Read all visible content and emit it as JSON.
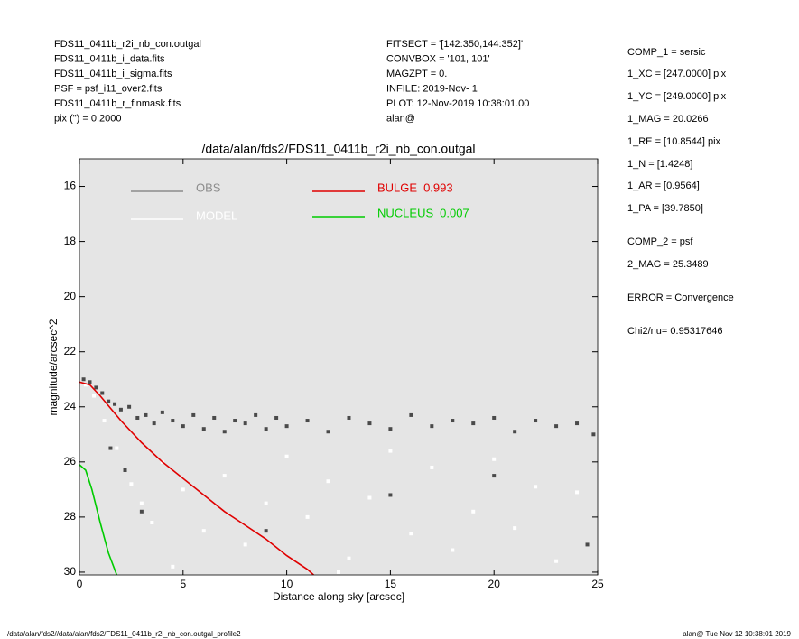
{
  "header": {
    "left": [
      "FDS11_0411b_r2i_nb_con.outgal",
      "FDS11_0411b_i_data.fits",
      "FDS11_0411b_i_sigma.fits",
      "PSF    = psf_i11_over2.fits",
      "FDS11_0411b_r_finmask.fits",
      "pix (\") =  0.2000"
    ],
    "middle": [
      "FITSECT = '[142:350,144:352]'",
      "CONVBOX = '101, 101'",
      "MAGZPT  =              0.",
      "INFILE: 2019-Nov- 1",
      "PLOT: 12-Nov-2019 10:38:01.00",
      "alan@"
    ]
  },
  "parameters": [
    "COMP_1  = sersic",
    "1_XC    = [247.0000] pix",
    "1_YC    = [249.0000] pix",
    "1_MAG   = 20.0266",
    "1_RE    = [10.8544] pix",
    "1_N     = [1.4248]",
    "1_AR    = [0.9564]",
    "1_PA    = [39.7850]",
    "COMP_2  = psf",
    "2_MAG   = 25.3489",
    "ERROR   = Convergence",
    "Chi2/nu=      0.95317646"
  ],
  "footer": {
    "left": "/data/alan/fds2//data/alan/fds2/FDS11_0411b_r2i_nb_con.outgal_profile2",
    "right": "alan@  Tue Nov 12 10:38:01 2019"
  },
  "chart_data": {
    "type": "scatter",
    "title": "/data/alan/fds2/FDS11_0411b_r2i_nb_con.outgal",
    "xlabel": "Distance along sky [arcsec]",
    "ylabel": "magnitude/arcsec^2",
    "xlim": [
      0,
      25
    ],
    "ylim": [
      15,
      30.1
    ],
    "y_inverted": true,
    "xticks": [
      0,
      5,
      10,
      15,
      20,
      25
    ],
    "yticks": [
      16,
      18,
      20,
      22,
      24,
      26,
      28,
      30
    ],
    "background": "#e5e5e5",
    "series": [
      {
        "name": "OBS",
        "color": "#4a4a4a",
        "legend_color": "#8c8c8c",
        "kind": "points",
        "x": [
          0.2,
          0.5,
          0.8,
          1.1,
          1.4,
          1.7,
          2.0,
          2.4,
          2.8,
          3.2,
          3.6,
          4.0,
          4.5,
          5,
          5.5,
          6,
          6.5,
          7,
          7.5,
          8,
          8.5,
          9,
          9.5,
          10,
          11,
          12,
          13,
          14,
          15,
          16,
          17,
          18,
          19,
          20,
          21,
          22,
          23,
          24,
          24.8,
          1.5,
          2.2,
          3,
          9,
          15,
          20,
          24.5
        ],
        "values": [
          23,
          23.1,
          23.3,
          23.5,
          23.8,
          23.9,
          24.1,
          24.0,
          24.4,
          24.3,
          24.6,
          24.2,
          24.5,
          24.7,
          24.3,
          24.8,
          24.4,
          24.9,
          24.5,
          24.6,
          24.3,
          24.8,
          24.4,
          24.7,
          24.5,
          24.9,
          24.4,
          24.6,
          24.8,
          24.3,
          24.7,
          24.5,
          24.6,
          24.4,
          24.9,
          24.5,
          24.7,
          24.6,
          25.0,
          25.5,
          26.3,
          27.8,
          28.5,
          27.2,
          26.5,
          29
        ]
      },
      {
        "name": "MODEL",
        "color": "#ffffff",
        "legend_color": "#ffffff",
        "kind": "points",
        "x": [
          0.3,
          0.7,
          1.2,
          1.8,
          2.5,
          3,
          3.5,
          4,
          5,
          6,
          7,
          8,
          9,
          10,
          11,
          12,
          13,
          14,
          15,
          16,
          17,
          18,
          19,
          20,
          21,
          22,
          23,
          24,
          4.5,
          12.5
        ],
        "values": [
          23.2,
          23.6,
          24.5,
          25.5,
          26.8,
          27.5,
          28.2,
          26,
          27,
          28.5,
          26.5,
          29,
          27.5,
          25.8,
          28,
          26.7,
          29.5,
          27.3,
          25.6,
          28.6,
          26.2,
          29.2,
          27.8,
          25.9,
          28.4,
          26.9,
          29.6,
          27.1,
          29.8,
          30
        ]
      },
      {
        "name": "BULGE",
        "fraction": 0.993,
        "color": "#e00000",
        "legend_color": "#e00000",
        "kind": "line",
        "x": [
          0,
          0.5,
          1,
          2,
          3,
          4,
          5,
          6,
          7,
          8,
          9,
          10,
          11,
          11.3
        ],
        "values": [
          23.1,
          23.2,
          23.6,
          24.5,
          25.3,
          26.0,
          26.6,
          27.2,
          27.8,
          28.3,
          28.8,
          29.4,
          29.9,
          30.1
        ]
      },
      {
        "name": "NUCLEUS",
        "fraction": 0.007,
        "color": "#00cc00",
        "legend_color": "#00cc00",
        "kind": "line",
        "x": [
          0,
          0.3,
          0.6,
          1,
          1.4,
          1.8
        ],
        "values": [
          26.1,
          26.3,
          27.0,
          28.2,
          29.3,
          30.1
        ]
      }
    ]
  }
}
